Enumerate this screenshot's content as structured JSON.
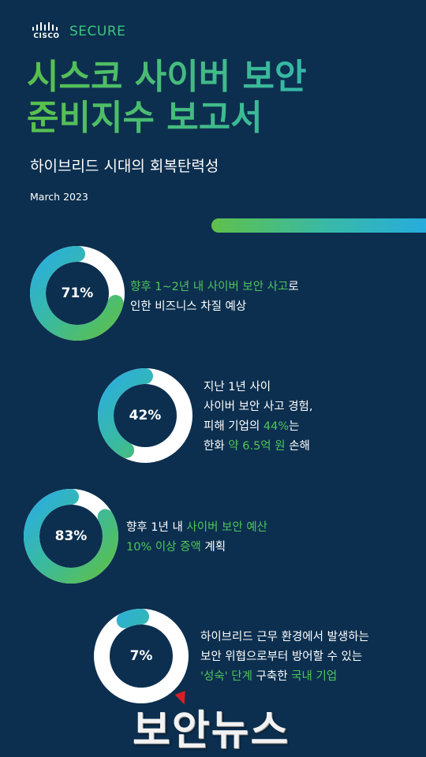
{
  "brand": {
    "company": "CISCO",
    "product": "SECURE"
  },
  "title": {
    "line1": "시스코 사이버 보안",
    "line2": "준비지수 보고서"
  },
  "subtitle": "하이브리드 시대의 회복탄력성",
  "date": "March 2023",
  "colors": {
    "background": "#0c2f4f",
    "green": "#4fc55a",
    "teal": "#3fc1b0",
    "blue": "#3ab5e0",
    "ring_empty": "#ffffff"
  },
  "stats": [
    {
      "value": 71,
      "label": "71%",
      "lines": [
        [
          {
            "t": "향후 1~2년 내 사이버 보안 사고",
            "c": "green"
          },
          {
            "t": "로",
            "c": "white"
          }
        ],
        [
          {
            "t": "인한 비즈니스 차질 예상",
            "c": "white"
          }
        ]
      ]
    },
    {
      "value": 42,
      "label": "42%",
      "lines": [
        [
          {
            "t": "지난 1년 사이",
            "c": "white"
          }
        ],
        [
          {
            "t": "사이버 보안 사고 경험,",
            "c": "white"
          }
        ],
        [
          {
            "t": "피해 기업의 ",
            "c": "white"
          },
          {
            "t": "44%",
            "c": "green"
          },
          {
            "t": "는",
            "c": "white"
          }
        ],
        [
          {
            "t": "한화 ",
            "c": "white"
          },
          {
            "t": "약 6.5억 원",
            "c": "green"
          },
          {
            "t": " 손해",
            "c": "white"
          }
        ]
      ]
    },
    {
      "value": 83,
      "label": "83%",
      "lines": [
        [
          {
            "t": "향후 1년 내 ",
            "c": "white"
          },
          {
            "t": "사이버 보안 예산",
            "c": "green"
          }
        ],
        [
          {
            "t": "10% 이상 증액",
            "c": "green"
          },
          {
            "t": " 계획",
            "c": "white"
          }
        ]
      ]
    },
    {
      "value": 7,
      "label": "7%",
      "lines": [
        [
          {
            "t": "하이브리드 근무 환경에서 발생하는",
            "c": "white"
          }
        ],
        [
          {
            "t": "보안 위협으로부터 방어할 수 있는",
            "c": "white"
          }
        ],
        [
          {
            "t": "'성숙' 단계",
            "c": "green"
          },
          {
            "t": " 구축한 ",
            "c": "white"
          },
          {
            "t": "국내 기업",
            "c": "green"
          }
        ]
      ]
    }
  ],
  "watermark": "보안뉴스"
}
